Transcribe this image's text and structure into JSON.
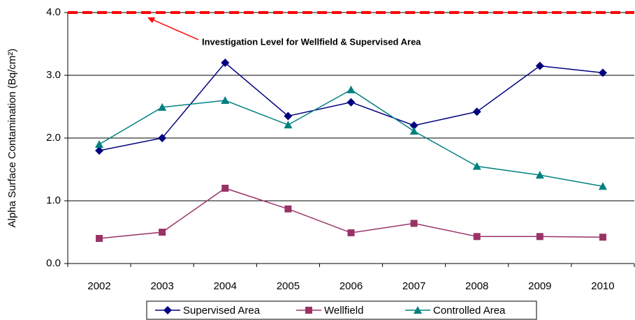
{
  "chart_data": {
    "type": "line",
    "y_label": "Alpha Surface Contamination (Bq/cm²)",
    "categories": [
      "2002",
      "2003",
      "2004",
      "2005",
      "2006",
      "2007",
      "2008",
      "2009",
      "2010"
    ],
    "series": [
      {
        "name": "Supervised Area",
        "color": "#000080",
        "marker": "diamond",
        "values": [
          1.8,
          2.0,
          3.2,
          2.35,
          2.57,
          2.2,
          2.42,
          3.15,
          3.04
        ]
      },
      {
        "name": "Wellfield",
        "color": "#993366",
        "marker": "square",
        "values": [
          0.4,
          0.5,
          1.2,
          0.87,
          0.49,
          0.64,
          0.43,
          0.43,
          0.42
        ]
      },
      {
        "name": "Controlled Area",
        "color": "#008080",
        "marker": "triangle",
        "values": [
          1.9,
          2.49,
          2.6,
          2.21,
          2.77,
          2.11,
          1.55,
          1.41,
          1.23
        ]
      }
    ],
    "reference_line": {
      "value": 4,
      "label": "Investigation Level for Wellfield & Supervised Area",
      "color": "#ff0000"
    },
    "ylim": [
      0,
      4
    ],
    "yticks": [
      {
        "value": 0,
        "label": "0.0"
      },
      {
        "value": 1,
        "label": "1.0"
      },
      {
        "value": 2,
        "label": "2.0"
      },
      {
        "value": 3,
        "label": "3.0"
      },
      {
        "value": 4,
        "label": "4.0"
      }
    ],
    "grid": true,
    "legend": "bottom"
  }
}
